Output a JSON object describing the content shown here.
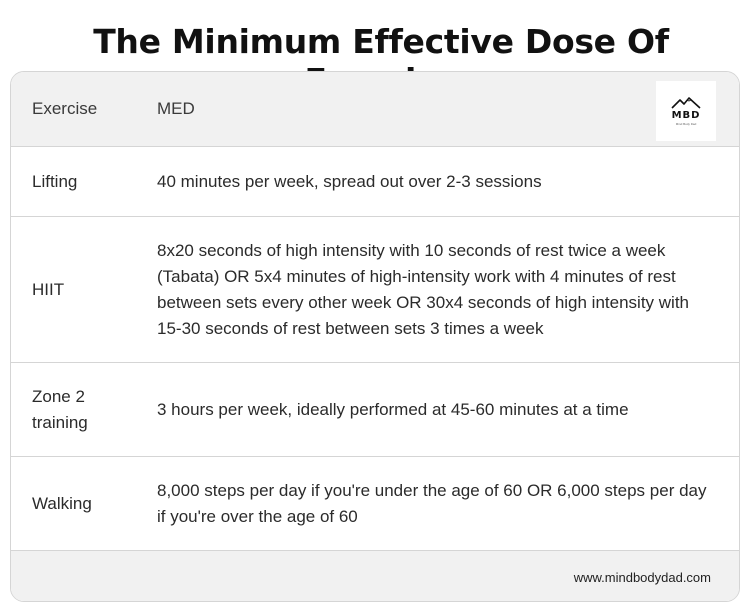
{
  "title": "The Minimum Effective Dose Of Exercise",
  "table": {
    "headers": [
      "Exercise",
      "MED"
    ],
    "rows": [
      {
        "exercise": "Lifting",
        "med": "40 minutes per week, spread out over 2-3 sessions"
      },
      {
        "exercise": "HIIT",
        "med": "8x20 seconds of high intensity with 10 seconds of rest twice a week (Tabata) OR 5x4 minutes of high-intensity work with 4 minutes of rest between sets every other week OR 30x4 seconds of high intensity with 15-30 seconds of rest between sets 3 times a week"
      },
      {
        "exercise": "Zone 2 training",
        "med": "3 hours per week, ideally performed at 45-60 minutes at a time"
      },
      {
        "exercise": "Walking",
        "med": "8,000 steps per day if you're under the age of 60 OR 6,000 steps per day if you're over the age of 60"
      }
    ]
  },
  "logo": {
    "text": "MBD",
    "subtitle": "Mind Body Dad",
    "icon": "mountain-icon"
  },
  "footer": {
    "url": "www.mindbodydad.com"
  }
}
